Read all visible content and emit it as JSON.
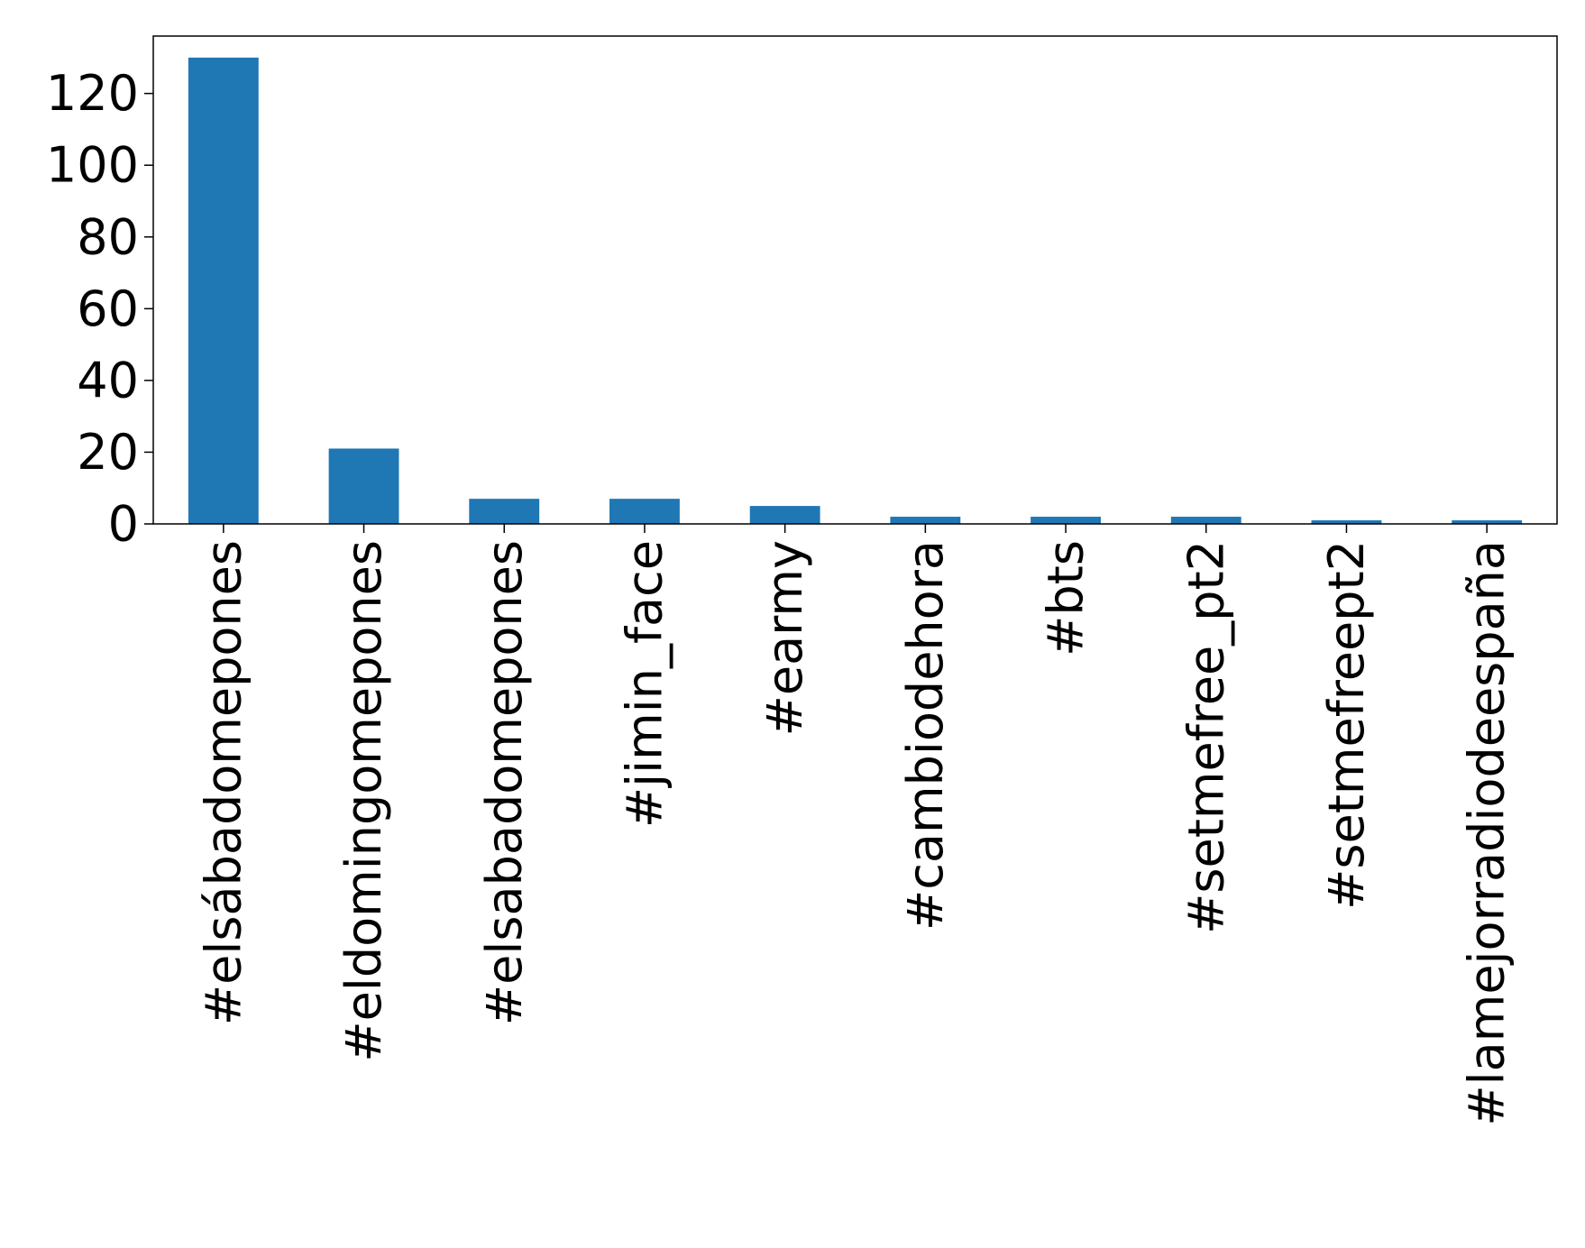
{
  "chart_data": {
    "type": "bar",
    "title": "",
    "xlabel": "",
    "ylabel": "",
    "categories": [
      "#elsábadomepones",
      "#eldomingomepones",
      "#elsabadomepones",
      "#jimin_face",
      "#earmy",
      "#cambiodehora",
      "#bts",
      "#setmefree_pt2",
      "#setmefreept2",
      "#lamejorradiodeespaña"
    ],
    "values": [
      130,
      21,
      7,
      7,
      5,
      2,
      2,
      2,
      1,
      1
    ],
    "ylim": [
      0,
      136
    ],
    "yticks": [
      0,
      20,
      40,
      60,
      80,
      100,
      120
    ],
    "grid": false,
    "legend": "none",
    "bar_color": "#1f77b4"
  }
}
